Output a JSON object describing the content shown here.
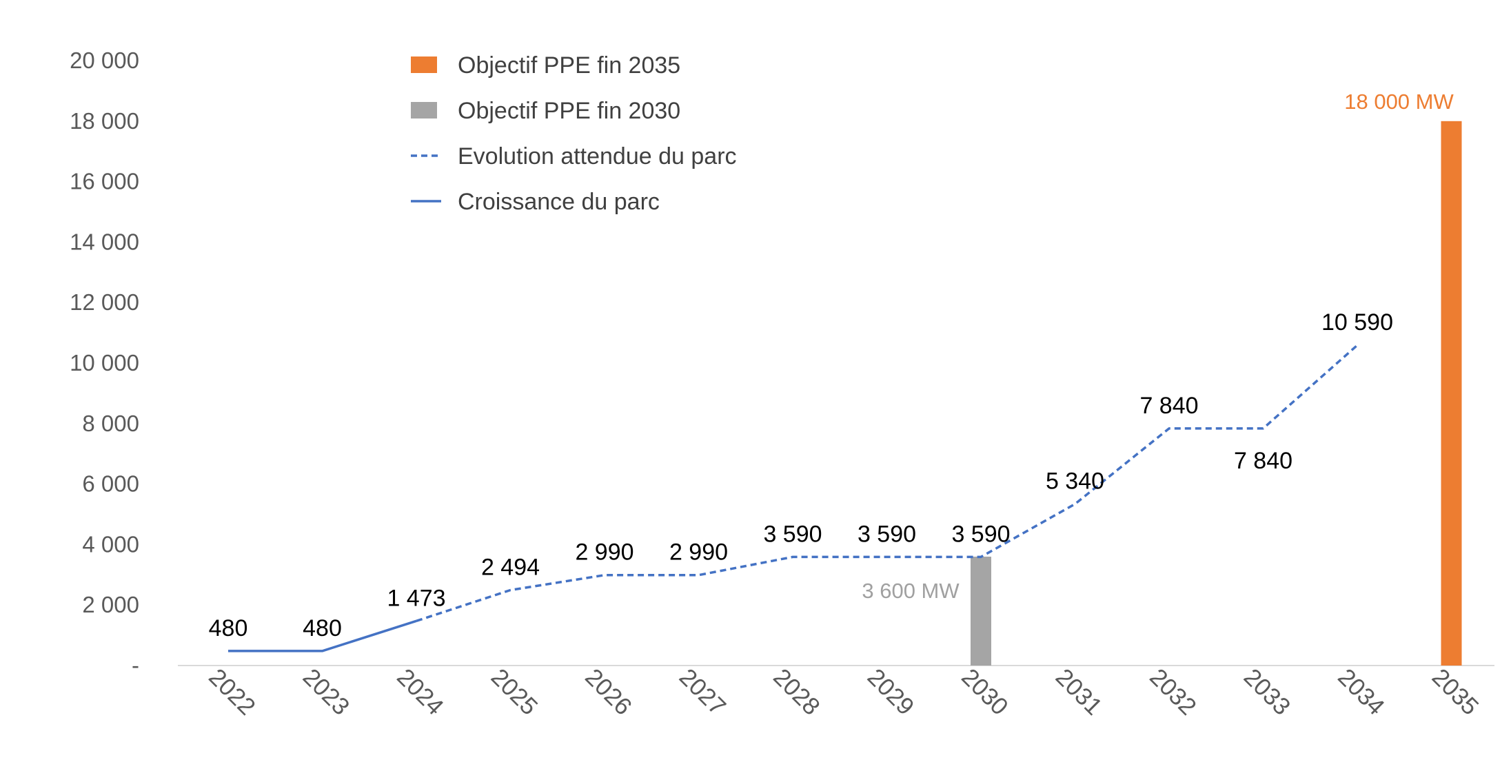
{
  "chart_data": {
    "type": "line",
    "categories": [
      "2022",
      "2023",
      "2024",
      "2025",
      "2026",
      "2027",
      "2028",
      "2029",
      "2030",
      "2031",
      "2032",
      "2033",
      "2034",
      "2035"
    ],
    "ylim": [
      0,
      20000
    ],
    "yticks": [
      {
        "value": 0,
        "label": "-"
      },
      {
        "value": 2000,
        "label": "2 000"
      },
      {
        "value": 4000,
        "label": "4 000"
      },
      {
        "value": 6000,
        "label": "6 000"
      },
      {
        "value": 8000,
        "label": "8 000"
      },
      {
        "value": 10000,
        "label": "10 000"
      },
      {
        "value": 12000,
        "label": "12 000"
      },
      {
        "value": 14000,
        "label": "14 000"
      },
      {
        "value": 16000,
        "label": "16 000"
      },
      {
        "value": 18000,
        "label": "18 000"
      },
      {
        "value": 20000,
        "label": "20 000"
      }
    ],
    "grid": false,
    "legend_position": "top-left",
    "series": [
      {
        "name": "Croissance du parc",
        "style": "solid",
        "color": "#4472C4",
        "x": [
          "2022",
          "2023",
          "2024"
        ],
        "values": [
          480,
          480,
          1473
        ]
      },
      {
        "name": "Evolution attendue du parc",
        "style": "dashed",
        "color": "#4472C4",
        "x": [
          "2024",
          "2025",
          "2026",
          "2027",
          "2028",
          "2029",
          "2030",
          "2031",
          "2032",
          "2033",
          "2034"
        ],
        "values": [
          1473,
          2494,
          2990,
          2990,
          3590,
          3590,
          3590,
          5340,
          7840,
          7840,
          10590
        ]
      },
      {
        "name": "Objectif PPE fin 2030",
        "type": "bar",
        "color": "#A5A5A5",
        "x": [
          "2030"
        ],
        "values": [
          3600
        ],
        "bar_label": "3 600 MW"
      },
      {
        "name": "Objectif PPE fin 2035",
        "type": "bar",
        "color": "#ED7D31",
        "x": [
          "2035"
        ],
        "values": [
          18000
        ],
        "bar_label": "18 000 MW"
      }
    ],
    "data_labels": [
      {
        "x": "2022",
        "value": 480,
        "text": "480",
        "pos": "above"
      },
      {
        "x": "2023",
        "value": 480,
        "text": "480",
        "pos": "above"
      },
      {
        "x": "2024",
        "value": 1473,
        "text": "1 473",
        "pos": "above"
      },
      {
        "x": "2025",
        "value": 2494,
        "text": "2 494",
        "pos": "above"
      },
      {
        "x": "2026",
        "value": 2990,
        "text": "2 990",
        "pos": "above"
      },
      {
        "x": "2027",
        "value": 2990,
        "text": "2 990",
        "pos": "above"
      },
      {
        "x": "2028",
        "value": 3590,
        "text": "3 590",
        "pos": "above"
      },
      {
        "x": "2029",
        "value": 3590,
        "text": "3 590",
        "pos": "above"
      },
      {
        "x": "2030",
        "value": 3590,
        "text": "3 590",
        "pos": "above"
      },
      {
        "x": "2031",
        "value": 5340,
        "text": "5 340",
        "pos": "above"
      },
      {
        "x": "2032",
        "value": 7840,
        "text": "7 840",
        "pos": "above"
      },
      {
        "x": "2033",
        "value": 7840,
        "text": "7 840",
        "pos": "below"
      },
      {
        "x": "2034",
        "value": 10590,
        "text": "10 590",
        "pos": "above"
      }
    ],
    "legend": [
      {
        "label": "Objectif PPE fin 2035",
        "symbol": "rect",
        "color": "#ED7D31"
      },
      {
        "label": "Objectif PPE fin 2030",
        "symbol": "rect",
        "color": "#A5A5A5"
      },
      {
        "label": "Evolution attendue du parc",
        "symbol": "dashed",
        "color": "#4472C4"
      },
      {
        "label": "Croissance du parc",
        "symbol": "solid",
        "color": "#4472C4"
      }
    ]
  }
}
